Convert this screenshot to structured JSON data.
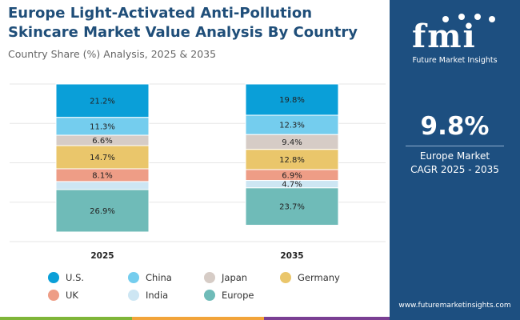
{
  "title": "Europe Light-Activated Anti-Pollution Skincare Market Value Analysis By Country",
  "subtitle": "Country Share (%) Analysis, 2025 & 2035",
  "colors": {
    "U.S.": "#0a9fd8",
    "China": "#74cdee",
    "Japan": "#d6ccc6",
    "Germany": "#eac66b",
    "UK": "#ee9d86",
    "India": "#cde6f3",
    "Europe": "#6fbbb8"
  },
  "chart_data": {
    "type": "bar",
    "stacked": true,
    "categories": [
      "2025",
      "2035"
    ],
    "ylim": [
      0,
      100
    ],
    "series": [
      {
        "name": "U.S.",
        "values": [
          21.2,
          19.8
        ],
        "labels": [
          "21.2%",
          "19.8%"
        ]
      },
      {
        "name": "China",
        "values": [
          11.3,
          12.3
        ],
        "labels": [
          "11.3%",
          "12.3%"
        ]
      },
      {
        "name": "Japan",
        "values": [
          6.6,
          9.4
        ],
        "labels": [
          "6.6%",
          "9.4%"
        ]
      },
      {
        "name": "Germany",
        "values": [
          14.7,
          12.8
        ],
        "labels": [
          "14.7%",
          "12.8%"
        ]
      },
      {
        "name": "UK",
        "values": [
          8.1,
          6.9
        ],
        "labels": [
          "8.1%",
          "6.9%"
        ]
      },
      {
        "name": "India",
        "values": [
          5.1,
          4.7
        ],
        "labels": [
          "",
          "4.7%"
        ]
      },
      {
        "name": "Europe",
        "values": [
          26.9,
          23.7
        ],
        "labels": [
          "26.9%",
          "23.7%"
        ]
      }
    ],
    "grid": true,
    "legend": "bottom"
  },
  "legend": [
    "U.S.",
    "China",
    "Japan",
    "Germany",
    "UK",
    "India",
    "Europe"
  ],
  "side_panel": {
    "logo_mark": "fmi",
    "logo_text": "Future Market Insights",
    "cagr_value": "9.8%",
    "cagr_label_line1": "Europe Market",
    "cagr_label_line2": "CAGR 2025 - 2035",
    "url": "www.futuremarketinsights.com"
  }
}
